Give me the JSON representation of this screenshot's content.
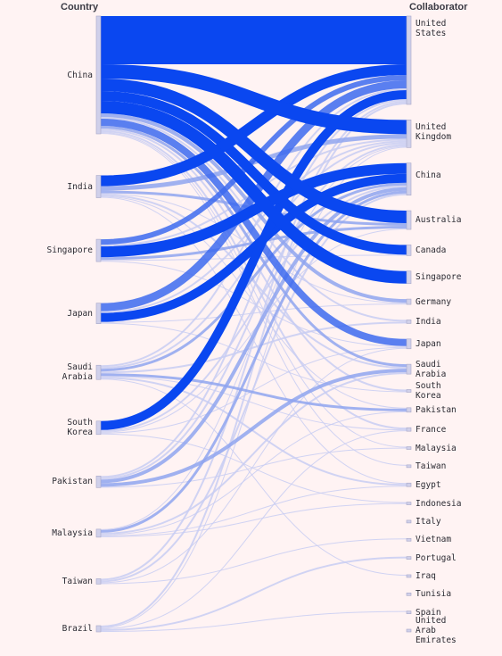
{
  "headers": {
    "left": "Country",
    "right": "Collaborator"
  },
  "colors": {
    "background": "#fff3f3",
    "strong": "#0a47f0",
    "medium": "#3d6aee",
    "light": "#8fa4ee",
    "faint": "#c8cdf2",
    "node": "#d0d0ea",
    "node_border": "#a8a8c8"
  },
  "countries": [
    {
      "name": "China",
      "label": "China"
    },
    {
      "name": "India",
      "label": "India"
    },
    {
      "name": "Singapore",
      "label": "Singapore"
    },
    {
      "name": "Japan",
      "label": "Japan"
    },
    {
      "name": "Saudi Arabia",
      "label": "Saudi\nArabia"
    },
    {
      "name": "South Korea",
      "label": "South\nKorea"
    },
    {
      "name": "Pakistan",
      "label": "Pakistan"
    },
    {
      "name": "Malaysia",
      "label": "Malaysia"
    },
    {
      "name": "Taiwan",
      "label": "Taiwan"
    },
    {
      "name": "Brazil",
      "label": "Brazil"
    }
  ],
  "collaborators": [
    {
      "name": "United States",
      "label": "United\nStates"
    },
    {
      "name": "United Kingdom",
      "label": "United\nKingdom"
    },
    {
      "name": "China",
      "label": "China"
    },
    {
      "name": "Australia",
      "label": "Australia"
    },
    {
      "name": "Canada",
      "label": "Canada"
    },
    {
      "name": "Singapore",
      "label": "Singapore"
    },
    {
      "name": "Germany",
      "label": "Germany"
    },
    {
      "name": "India",
      "label": "India"
    },
    {
      "name": "Japan",
      "label": "Japan"
    },
    {
      "name": "Saudi Arabia",
      "label": "Saudi\nArabia"
    },
    {
      "name": "South Korea",
      "label": "South\nKorea"
    },
    {
      "name": "Pakistan",
      "label": "Pakistan"
    },
    {
      "name": "France",
      "label": "France"
    },
    {
      "name": "Malaysia",
      "label": "Malaysia"
    },
    {
      "name": "Taiwan",
      "label": "Taiwan"
    },
    {
      "name": "Egypt",
      "label": "Egypt"
    },
    {
      "name": "Indonesia",
      "label": "Indonesia"
    },
    {
      "name": "Italy",
      "label": "Italy"
    },
    {
      "name": "Vietnam",
      "label": "Vietnam"
    },
    {
      "name": "Portugal",
      "label": "Portugal"
    },
    {
      "name": "Iraq",
      "label": "Iraq"
    },
    {
      "name": "Tunisia",
      "label": "Tunisia"
    },
    {
      "name": "Spain",
      "label": "Spain"
    },
    {
      "name": "United Arab Emirates",
      "label": "United\nArab\nEmirates"
    }
  ],
  "flows": [
    {
      "from": 0,
      "to": 0,
      "value": 54
    },
    {
      "from": 0,
      "to": 1,
      "value": 16
    },
    {
      "from": 0,
      "to": 3,
      "value": 14
    },
    {
      "from": 0,
      "to": 4,
      "value": 11
    },
    {
      "from": 0,
      "to": 5,
      "value": 14
    },
    {
      "from": 0,
      "to": 8,
      "value": 8
    },
    {
      "from": 0,
      "to": 6,
      "value": 4
    },
    {
      "from": 0,
      "to": 9,
      "value": 3
    },
    {
      "from": 0,
      "to": 7,
      "value": 2
    },
    {
      "from": 0,
      "to": 12,
      "value": 2
    },
    {
      "from": 0,
      "to": 10,
      "value": 2
    },
    {
      "from": 0,
      "to": 13,
      "value": 1
    },
    {
      "from": 0,
      "to": 14,
      "value": 1
    },
    {
      "from": 1,
      "to": 0,
      "value": 12
    },
    {
      "from": 1,
      "to": 1,
      "value": 5
    },
    {
      "from": 1,
      "to": 3,
      "value": 3
    },
    {
      "from": 1,
      "to": 9,
      "value": 2
    },
    {
      "from": 1,
      "to": 6,
      "value": 1
    },
    {
      "from": 1,
      "to": 15,
      "value": 1
    },
    {
      "from": 1,
      "to": 11,
      "value": 1
    },
    {
      "from": 2,
      "to": 0,
      "value": 6
    },
    {
      "from": 2,
      "to": 2,
      "value": 12
    },
    {
      "from": 2,
      "to": 3,
      "value": 3
    },
    {
      "from": 2,
      "to": 1,
      "value": 2
    },
    {
      "from": 2,
      "to": 4,
      "value": 1
    },
    {
      "from": 2,
      "to": 8,
      "value": 1
    },
    {
      "from": 3,
      "to": 0,
      "value": 9
    },
    {
      "from": 3,
      "to": 2,
      "value": 10
    },
    {
      "from": 3,
      "to": 1,
      "value": 2
    },
    {
      "from": 3,
      "to": 10,
      "value": 1
    },
    {
      "from": 3,
      "to": 6,
      "value": 1
    },
    {
      "from": 4,
      "to": 2,
      "value": 3
    },
    {
      "from": 4,
      "to": 11,
      "value": 3
    },
    {
      "from": 4,
      "to": 15,
      "value": 2
    },
    {
      "from": 4,
      "to": 0,
      "value": 2
    },
    {
      "from": 4,
      "to": 1,
      "value": 2
    },
    {
      "from": 4,
      "to": 7,
      "value": 2
    },
    {
      "from": 4,
      "to": 12,
      "value": 1
    },
    {
      "from": 4,
      "to": 20,
      "value": 1
    },
    {
      "from": 5,
      "to": 0,
      "value": 10
    },
    {
      "from": 5,
      "to": 2,
      "value": 2
    },
    {
      "from": 5,
      "to": 3,
      "value": 1
    },
    {
      "from": 5,
      "to": 8,
      "value": 1
    },
    {
      "from": 5,
      "to": 16,
      "value": 1
    },
    {
      "from": 6,
      "to": 2,
      "value": 4
    },
    {
      "from": 6,
      "to": 9,
      "value": 4
    },
    {
      "from": 6,
      "to": 0,
      "value": 2
    },
    {
      "from": 6,
      "to": 1,
      "value": 2
    },
    {
      "from": 6,
      "to": 13,
      "value": 1
    },
    {
      "from": 7,
      "to": 2,
      "value": 3
    },
    {
      "from": 7,
      "to": 9,
      "value": 2
    },
    {
      "from": 7,
      "to": 11,
      "value": 1
    },
    {
      "from": 7,
      "to": 1,
      "value": 1
    },
    {
      "from": 7,
      "to": 16,
      "value": 1
    },
    {
      "from": 7,
      "to": 15,
      "value": 1
    },
    {
      "from": 8,
      "to": 0,
      "value": 2
    },
    {
      "from": 8,
      "to": 2,
      "value": 2
    },
    {
      "from": 8,
      "to": 8,
      "value": 1
    },
    {
      "from": 8,
      "to": 18,
      "value": 1
    },
    {
      "from": 9,
      "to": 0,
      "value": 2
    },
    {
      "from": 9,
      "to": 19,
      "value": 2
    },
    {
      "from": 9,
      "to": 12,
      "value": 1
    },
    {
      "from": 9,
      "to": 22,
      "value": 1
    },
    {
      "from": 9,
      "to": 1,
      "value": 1
    }
  ]
}
